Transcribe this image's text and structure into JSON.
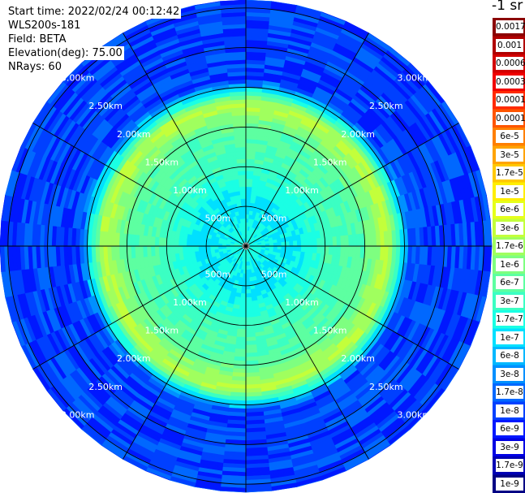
{
  "info": {
    "start_time": "Start time: 2022/02/24 00:12:42",
    "station": "WLS200s-181",
    "field": "Field: BETA",
    "elevation": "Elevation(deg): 75.00",
    "nrays": "NRays: 60"
  },
  "colorbar": {
    "title": "-1 sr",
    "labels": [
      "0.0017",
      "0.001",
      "0.0006",
      "0.0003",
      "0.00017",
      "0.0001",
      "6e-5",
      "3e-5",
      "1.7e-5",
      "1e-5",
      "6e-6",
      "3e-6",
      "1.7e-6",
      "1e-6",
      "6e-7",
      "3e-7",
      "1.7e-7",
      "1e-7",
      "6e-8",
      "3e-8",
      "1.7e-8",
      "1e-8",
      "6e-9",
      "3e-9",
      "1.7e-9",
      "1e-9"
    ],
    "colors": [
      "#8b0000",
      "#b00000",
      "#d20000",
      "#f00000",
      "#ff2a00",
      "#ff5500",
      "#ff7f00",
      "#ffa300",
      "#ffc800",
      "#ffee00",
      "#e6ff1a",
      "#c3ff3b",
      "#a0ff5e",
      "#7eff80",
      "#5dffa1",
      "#3bffc3",
      "#1affe4",
      "#00e0ff",
      "#00b8ff",
      "#0090ff",
      "#0068ff",
      "#0040ff",
      "#0018ff",
      "#0000e4",
      "#0000b4",
      "#000084"
    ]
  },
  "chart_data": {
    "type": "heatmap",
    "projection": "polar PPI",
    "rays": 60,
    "elevation_deg": 75.0,
    "range_rings_km": [
      0.5,
      1.0,
      1.5,
      2.0,
      2.5,
      3.0
    ],
    "max_range_km": 3.1,
    "ring_labels": [
      "500m",
      "1.00km",
      "1.50km",
      "2.00km",
      "2.50km",
      "3.00km"
    ],
    "radial_profile": [
      {
        "range_km": 0.1,
        "beta": "1.7e-7"
      },
      {
        "range_km": 0.5,
        "beta": "1e-7"
      },
      {
        "range_km": 1.0,
        "beta": "3e-7"
      },
      {
        "range_km": 1.5,
        "beta": "6e-7"
      },
      {
        "range_km": 1.8,
        "beta": "3e-6"
      },
      {
        "range_km": 2.1,
        "beta": "1e-8"
      },
      {
        "range_km": 2.5,
        "beta": "1e-8"
      },
      {
        "range_km": 3.0,
        "beta": "1e-8"
      }
    ]
  }
}
